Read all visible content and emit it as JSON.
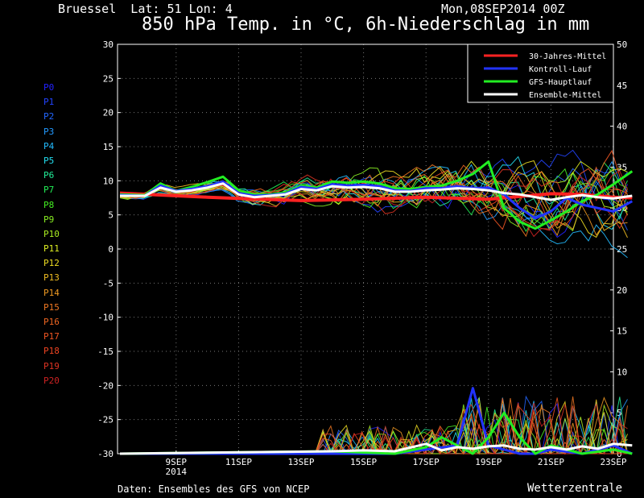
{
  "header": {
    "station": "Bruessel  Lat: 51 Lon: 4",
    "run": "Mon,08SEP2014 00Z",
    "title": "850 hPa Temp. in °C, 6h-Niederschlag in mm"
  },
  "footer": {
    "left": "Daten: Ensembles des GFS von NCEP",
    "right": "Wetterzentrale"
  },
  "members": [
    {
      "label": "P0",
      "color": "#2222ff"
    },
    {
      "label": "P1",
      "color": "#2244ff"
    },
    {
      "label": "P2",
      "color": "#2266ff"
    },
    {
      "label": "P3",
      "color": "#2299ff"
    },
    {
      "label": "P4",
      "color": "#22bbff"
    },
    {
      "label": "P5",
      "color": "#22ddee"
    },
    {
      "label": "P6",
      "color": "#22ee99"
    },
    {
      "label": "P7",
      "color": "#22ee55"
    },
    {
      "label": "P8",
      "color": "#44ee22"
    },
    {
      "label": "P9",
      "color": "#88ee22"
    },
    {
      "label": "P10",
      "color": "#aaee22"
    },
    {
      "label": "P11",
      "color": "#ddee22"
    },
    {
      "label": "P12",
      "color": "#eedd22"
    },
    {
      "label": "P13",
      "color": "#eebb22"
    },
    {
      "label": "P14",
      "color": "#ee9922"
    },
    {
      "label": "P15",
      "color": "#ee7722"
    },
    {
      "label": "P16",
      "color": "#ee6622"
    },
    {
      "label": "P17",
      "color": "#ee5522"
    },
    {
      "label": "P18",
      "color": "#ee4422"
    },
    {
      "label": "P19",
      "color": "#dd3322"
    },
    {
      "label": "P20",
      "color": "#cc2222"
    }
  ],
  "chart_data": {
    "type": "line",
    "x_range": [
      -0.8,
      15.6
    ],
    "x_ticks": [
      {
        "x": 1,
        "label": "9SEP",
        "label2": "2014"
      },
      {
        "x": 3,
        "label": "11SEP"
      },
      {
        "x": 5,
        "label": "13SEP"
      },
      {
        "x": 7,
        "label": "15SEP"
      },
      {
        "x": 9,
        "label": "17SEP"
      },
      {
        "x": 11,
        "label": "19SEP"
      },
      {
        "x": 13,
        "label": "21SEP"
      },
      {
        "x": 15,
        "label": "23SEP"
      }
    ],
    "y_left": {
      "min": -30,
      "max": 30,
      "step": 5,
      "unit": "°C"
    },
    "y_right": {
      "min": 0,
      "max": 50,
      "step": 5,
      "unit": "mm"
    },
    "grid": true,
    "legend": {
      "position": "top-right",
      "entries": [
        {
          "label": "30-Jahres-Mittel",
          "color": "#ff2222"
        },
        {
          "label": "Kontroll-Lauf",
          "color": "#2233ff"
        },
        {
          "label": "GFS-Hauptlauf",
          "color": "#22ee22"
        },
        {
          "label": "Ensemble-Mittel",
          "color": "#ffffff"
        }
      ]
    },
    "climate": {
      "name": "30-Jahres-Mittel",
      "color": "#ff2222",
      "x": [
        -0.8,
        2,
        3,
        5,
        7,
        9,
        11,
        12,
        13,
        14,
        15,
        15.6
      ],
      "y": [
        8.2,
        7.6,
        7.4,
        7.1,
        7.3,
        7.6,
        7.3,
        7.7,
        8.1,
        8.0,
        7.6,
        7.5
      ]
    },
    "temperature_series": [
      {
        "name": "GFS-Hauptlauf",
        "color": "#22ee22",
        "width": 3,
        "x": [
          -0.8,
          0,
          0.5,
          1,
          1.5,
          2,
          2.5,
          3,
          3.5,
          4,
          4.5,
          5,
          5.5,
          6,
          6.5,
          7,
          7.5,
          8,
          8.5,
          9,
          9.5,
          10,
          10.5,
          11,
          11.5,
          12,
          12.5,
          13,
          13.5,
          14,
          14.5,
          15,
          15.6
        ],
        "y": [
          8.0,
          7.9,
          9.6,
          8.5,
          9.1,
          9.8,
          10.6,
          8.6,
          8.0,
          8.0,
          8.3,
          9.3,
          9.0,
          9.9,
          9.7,
          9.9,
          9.6,
          8.9,
          8.8,
          9.1,
          9.3,
          10.0,
          11.0,
          12.8,
          6.0,
          4.0,
          3.0,
          4.2,
          5.5,
          7.0,
          8.0,
          9.5,
          11.4
        ]
      },
      {
        "name": "Kontroll-Lauf",
        "color": "#2233ff",
        "width": 3,
        "x": [
          -0.8,
          0,
          0.5,
          1,
          1.5,
          2,
          2.5,
          3,
          3.5,
          4,
          4.5,
          5,
          5.5,
          6,
          6.5,
          7,
          7.5,
          8,
          8.5,
          9,
          9.5,
          10,
          10.5,
          11,
          11.5,
          12,
          12.5,
          13,
          13.5,
          14,
          14.5,
          15,
          15.6
        ],
        "y": [
          7.9,
          7.8,
          9.3,
          8.5,
          8.8,
          9.2,
          9.9,
          8.2,
          7.8,
          7.9,
          8.1,
          9.1,
          8.8,
          9.5,
          9.3,
          9.4,
          9.2,
          8.6,
          8.5,
          8.9,
          8.9,
          9.2,
          8.9,
          9.0,
          8.0,
          6.0,
          4.5,
          5.5,
          7.5,
          6.5,
          6.0,
          5.5,
          7.0
        ]
      },
      {
        "name": "Ensemble-Mittel",
        "color": "#ffffff",
        "width": 3,
        "x": [
          -0.8,
          0,
          0.5,
          1,
          1.5,
          2,
          2.5,
          3,
          3.5,
          4,
          4.5,
          5,
          5.5,
          6,
          6.5,
          7,
          7.5,
          8,
          8.5,
          9,
          9.5,
          10,
          10.5,
          11,
          11.5,
          12,
          12.5,
          13,
          13.5,
          14,
          14.5,
          15,
          15.6
        ],
        "y": [
          7.8,
          7.8,
          9.0,
          8.4,
          8.6,
          9.0,
          9.6,
          8.0,
          7.6,
          7.8,
          8.0,
          8.8,
          8.6,
          9.2,
          9.0,
          9.1,
          8.9,
          8.4,
          8.4,
          8.6,
          8.7,
          8.9,
          8.8,
          8.6,
          8.2,
          8.0,
          7.6,
          7.2,
          7.6,
          7.9,
          7.6,
          7.4,
          7.8
        ]
      }
    ],
    "precipitation_series": [
      {
        "name": "Kontroll-Lauf",
        "color": "#2233ff",
        "width": 3,
        "x": [
          -0.8,
          6,
          8,
          9,
          10,
          10.5,
          11,
          11.5,
          12,
          12.5,
          13,
          14,
          15,
          15.6
        ],
        "y": [
          0,
          0,
          0,
          0.5,
          1,
          8,
          1,
          0.5,
          0,
          0,
          0.5,
          0,
          1,
          0
        ]
      },
      {
        "name": "GFS-Hauptlauf",
        "color": "#22ee22",
        "width": 3,
        "x": [
          -0.8,
          6,
          8,
          9,
          9.5,
          10,
          10.5,
          11,
          11.5,
          12,
          12.5,
          13,
          14,
          15,
          15.6
        ],
        "y": [
          0,
          0.3,
          0,
          0.8,
          2,
          1,
          0,
          2,
          5,
          2,
          0,
          1,
          0,
          0.5,
          0
        ]
      },
      {
        "name": "Ensemble-Mittel",
        "color": "#ffffff",
        "width": 3,
        "x": [
          -0.8,
          6,
          7,
          8,
          9,
          9.5,
          10,
          10.5,
          11,
          11.5,
          12,
          12.5,
          13,
          13.5,
          14,
          14.5,
          15,
          15.6
        ],
        "y": [
          0,
          0.3,
          0.4,
          0.3,
          1.2,
          0.4,
          0.8,
          0.6,
          0.9,
          1.0,
          0.6,
          0.5,
          0.8,
          0.5,
          0.9,
          0.6,
          1.2,
          1.0
        ]
      }
    ]
  }
}
